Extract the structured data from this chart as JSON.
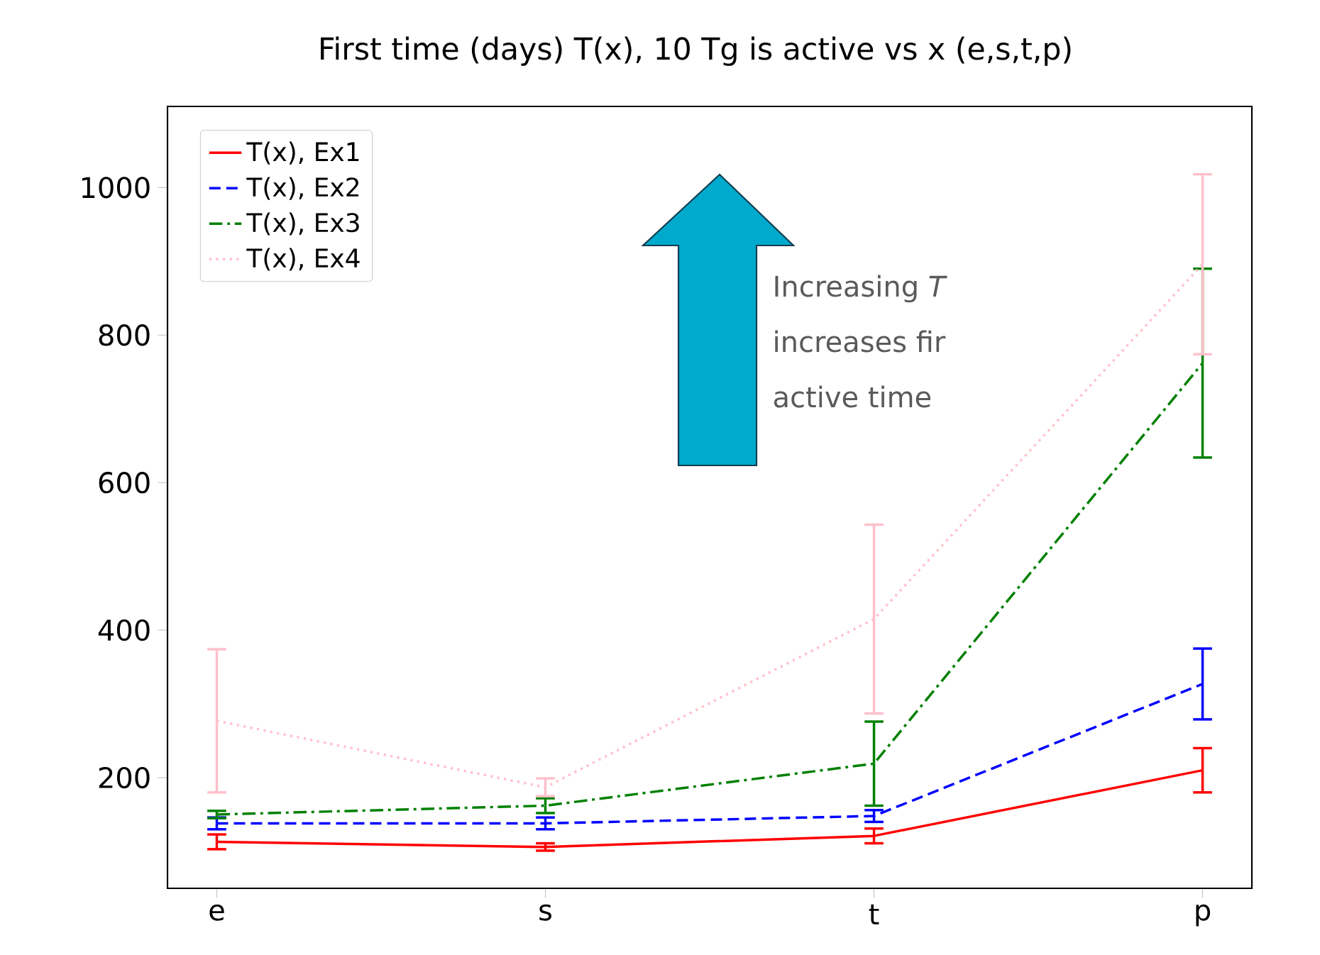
{
  "chart_data": {
    "type": "line",
    "title": "First time (days) T(x), 10 Tg is active vs x (e,s,t,p)",
    "categories": [
      "e",
      "s",
      "t",
      "p"
    ],
    "series": [
      {
        "name": "T(x), Ex1",
        "color": "#ff0000",
        "line_style": "solid",
        "values": [
          113,
          106,
          121,
          210
        ],
        "errors": [
          10,
          5,
          10,
          30
        ]
      },
      {
        "name": "T(x), Ex2",
        "color": "#0000ff",
        "line_style": "dashed",
        "values": [
          138,
          138,
          148,
          327
        ],
        "errors": [
          8,
          8,
          8,
          48
        ]
      },
      {
        "name": "T(x), Ex3",
        "color": "#008000",
        "line_style": "dashdot",
        "values": [
          150,
          162,
          219,
          762
        ],
        "errors": [
          5,
          10,
          57,
          128
        ]
      },
      {
        "name": "T(x), Ex4",
        "color": "#ffc0cb",
        "line_style": "dotted",
        "values": [
          277,
          187,
          415,
          896
        ],
        "errors": [
          97,
          12,
          128,
          122
        ]
      }
    ],
    "ylim": [
      50,
      1110
    ],
    "yticks": [
      200,
      400,
      600,
      800,
      1000
    ],
    "legend": "top left",
    "grid": false,
    "marker": "none",
    "annotations": [
      "Increasing *T*",
      "increases fir",
      "active time"
    ]
  }
}
